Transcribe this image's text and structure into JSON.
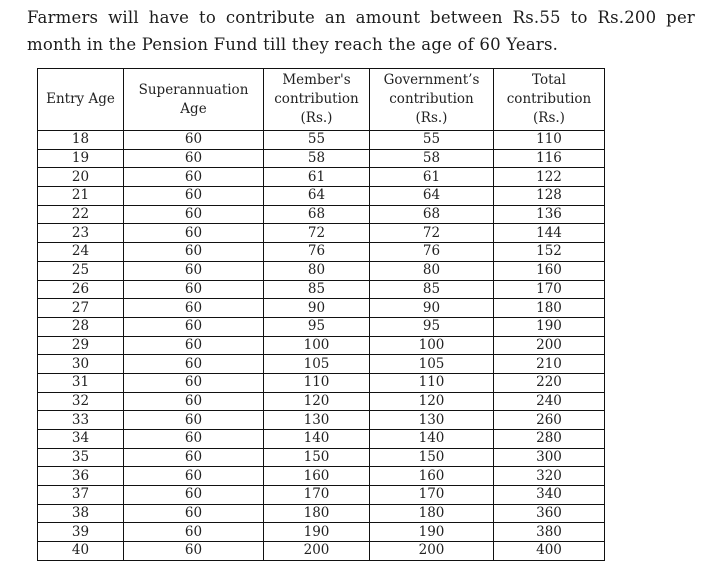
{
  "intro": {
    "text": "Farmers will have to contribute an amount between Rs.55 to Rs.200 per month in the Pension Fund till they reach the age of 60 Years."
  },
  "table": {
    "headers": [
      "Entry Age",
      "Superannuation Age",
      "Member's contribution (Rs.)",
      "Government’s contribution (Rs.)",
      "Total contribution (Rs.)"
    ],
    "rows": [
      [
        18,
        60,
        55,
        55,
        110
      ],
      [
        19,
        60,
        58,
        58,
        116
      ],
      [
        20,
        60,
        61,
        61,
        122
      ],
      [
        21,
        60,
        64,
        64,
        128
      ],
      [
        22,
        60,
        68,
        68,
        136
      ],
      [
        23,
        60,
        72,
        72,
        144
      ],
      [
        24,
        60,
        76,
        76,
        152
      ],
      [
        25,
        60,
        80,
        80,
        160
      ],
      [
        26,
        60,
        85,
        85,
        170
      ],
      [
        27,
        60,
        90,
        90,
        180
      ],
      [
        28,
        60,
        95,
        95,
        190
      ],
      [
        29,
        60,
        100,
        100,
        200
      ],
      [
        30,
        60,
        105,
        105,
        210
      ],
      [
        31,
        60,
        110,
        110,
        220
      ],
      [
        32,
        60,
        120,
        120,
        240
      ],
      [
        33,
        60,
        130,
        130,
        260
      ],
      [
        34,
        60,
        140,
        140,
        280
      ],
      [
        35,
        60,
        150,
        150,
        300
      ],
      [
        36,
        60,
        160,
        160,
        320
      ],
      [
        37,
        60,
        170,
        170,
        340
      ],
      [
        38,
        60,
        180,
        180,
        360
      ],
      [
        39,
        60,
        190,
        190,
        380
      ],
      [
        40,
        60,
        200,
        200,
        400
      ]
    ]
  }
}
